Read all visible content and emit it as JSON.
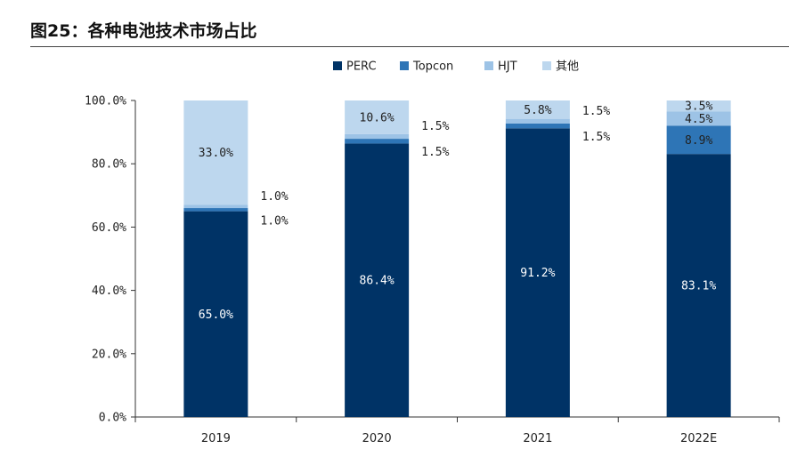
{
  "page_title": "图25：各种电池技术市场占比",
  "chart_data": {
    "type": "bar",
    "stacked": true,
    "title": "",
    "xlabel": "",
    "ylabel": "",
    "categories": [
      "2019",
      "2020",
      "2021",
      "2022E"
    ],
    "ylim": [
      0,
      100
    ],
    "y_ticks": [
      0,
      20,
      40,
      60,
      80,
      100
    ],
    "y_tick_labels": [
      "0.0%",
      "20.0%",
      "40.0%",
      "60.0%",
      "80.0%",
      "100.0%"
    ],
    "legend_position": "top-center",
    "grid": false,
    "series": [
      {
        "name": "PERC",
        "color": "#003366",
        "label_color": "#ffffff",
        "values": [
          65.0,
          86.4,
          91.2,
          83.1
        ],
        "labels": [
          "65.0%",
          "86.4%",
          "91.2%",
          "83.1%"
        ]
      },
      {
        "name": "Topcon",
        "color": "#2e75b6",
        "label_color": "#222222",
        "values": [
          1.0,
          1.5,
          1.5,
          8.9
        ],
        "labels": [
          "1.0%",
          "1.5%",
          "1.5%",
          "8.9%"
        ]
      },
      {
        "name": "HJT",
        "color": "#9dc3e6",
        "label_color": "#222222",
        "values": [
          1.0,
          1.5,
          1.5,
          4.5
        ],
        "labels": [
          "1.0%",
          "1.5%",
          "1.5%",
          "4.5%"
        ]
      },
      {
        "name": "其他",
        "color": "#bdd7ee",
        "label_color": "#222222",
        "values": [
          33.0,
          10.6,
          5.8,
          3.5
        ],
        "labels": [
          "33.0%",
          "10.6%",
          "5.8%",
          "3.5%"
        ]
      }
    ]
  }
}
